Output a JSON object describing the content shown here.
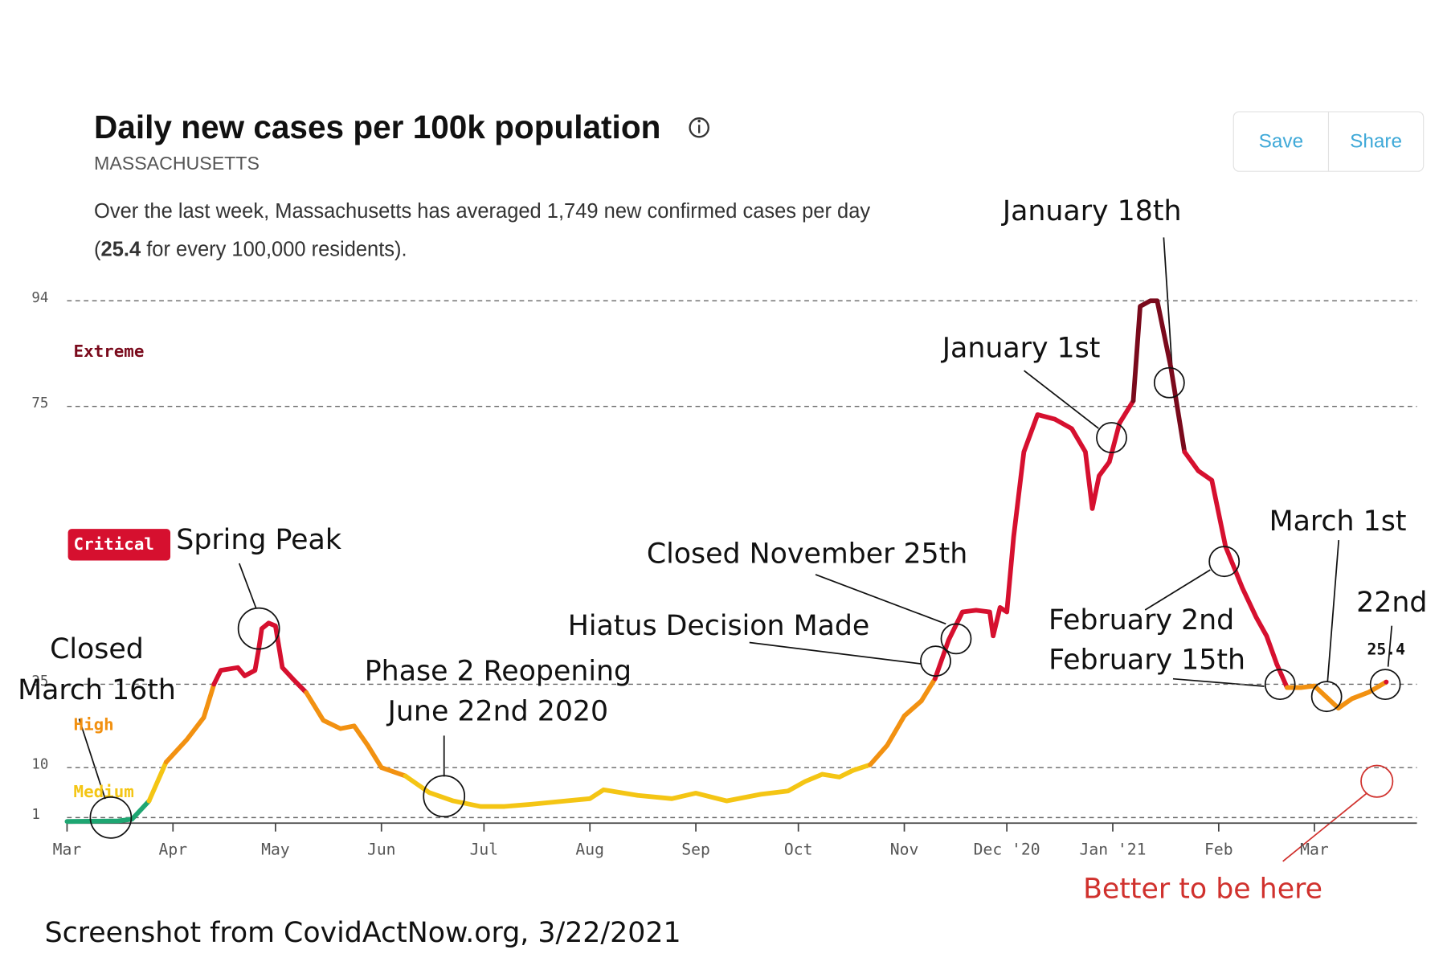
{
  "header": {
    "buttons": [
      "Save",
      "Share"
    ]
  },
  "chart_data": {
    "type": "line",
    "title": "Daily new cases per 100k population",
    "subtitle": "MASSACHUSETTS",
    "description": [
      "Over the last week, Massachusetts has averaged 1,749 new confirmed cases per day",
      "(",
      "25.4",
      " for every 100,000 residents)."
    ],
    "x": [
      "2020-03-01",
      "2020-03-16",
      "2020-03-20",
      "2020-03-25",
      "2020-03-30",
      "2020-04-05",
      "2020-04-10",
      "2020-04-13",
      "2020-04-15",
      "2020-04-20",
      "2020-04-22",
      "2020-04-25",
      "2020-04-26",
      "2020-04-27",
      "2020-04-29",
      "2020-05-01",
      "2020-05-03",
      "2020-05-06",
      "2020-05-10",
      "2020-05-15",
      "2020-05-20",
      "2020-05-24",
      "2020-05-28",
      "2020-06-01",
      "2020-06-08",
      "2020-06-15",
      "2020-06-22",
      "2020-06-30",
      "2020-07-07",
      "2020-07-15",
      "2020-07-25",
      "2020-08-01",
      "2020-08-05",
      "2020-08-15",
      "2020-08-25",
      "2020-09-01",
      "2020-09-10",
      "2020-09-20",
      "2020-09-28",
      "2020-10-03",
      "2020-10-08",
      "2020-10-13",
      "2020-10-17",
      "2020-10-22",
      "2020-10-27",
      "2020-11-01",
      "2020-11-06",
      "2020-11-10",
      "2020-11-14",
      "2020-11-18",
      "2020-11-22",
      "2020-11-26",
      "2020-11-27",
      "2020-11-29",
      "2020-12-01",
      "2020-12-03",
      "2020-12-06",
      "2020-12-10",
      "2020-12-15",
      "2020-12-20",
      "2020-12-24",
      "2020-12-26",
      "2020-12-28",
      "2020-12-31",
      "2021-01-03",
      "2021-01-07",
      "2021-01-09",
      "2021-01-12",
      "2021-01-14",
      "2021-01-18",
      "2021-01-22",
      "2021-01-26",
      "2021-01-30",
      "2021-02-03",
      "2021-02-08",
      "2021-02-12",
      "2021-02-15",
      "2021-02-18",
      "2021-02-21",
      "2021-02-25",
      "2021-03-01",
      "2021-03-05",
      "2021-03-08",
      "2021-03-12",
      "2021-03-17",
      "2021-03-22"
    ],
    "values": [
      0.3,
      0.4,
      0.7,
      4,
      11,
      15,
      19,
      25,
      27.5,
      28,
      26.5,
      27.5,
      31,
      35,
      36,
      35.5,
      28,
      26,
      23.5,
      18.5,
      17,
      17.5,
      14,
      10,
      8.5,
      5.5,
      4,
      3,
      3,
      3.4,
      4,
      4.4,
      6,
      5,
      4.4,
      5.4,
      4,
      5.2,
      5.8,
      7.5,
      8.8,
      8.3,
      9.5,
      10.5,
      14,
      19.3,
      22,
      26,
      33,
      38,
      38.3,
      38,
      33.7,
      38.8,
      38,
      51.5,
      66.8,
      73.5,
      72.7,
      71,
      66.8,
      56.6,
      62.5,
      65,
      72,
      76,
      93,
      94,
      94,
      82,
      66.8,
      63.4,
      61.7,
      49.8,
      42.2,
      37,
      33.7,
      28.6,
      24.4,
      24.4,
      24.7,
      22.4,
      20.7,
      22.4,
      23.6,
      25.4
    ],
    "xlim": [
      "2020-03-01",
      "2021-03-31"
    ],
    "xticks": [
      {
        "value": "2020-03-01",
        "label": "Mar"
      },
      {
        "value": "2020-04-01",
        "label": "Apr"
      },
      {
        "value": "2020-05-01",
        "label": "May"
      },
      {
        "value": "2020-06-01",
        "label": "Jun"
      },
      {
        "value": "2020-07-01",
        "label": "Jul"
      },
      {
        "value": "2020-08-01",
        "label": "Aug"
      },
      {
        "value": "2020-09-01",
        "label": "Sep"
      },
      {
        "value": "2020-10-01",
        "label": "Oct"
      },
      {
        "value": "2020-11-01",
        "label": "Nov"
      },
      {
        "value": "2020-12-01",
        "label": "Dec '20"
      },
      {
        "value": "2021-01-01",
        "label": "Jan '21"
      },
      {
        "value": "2021-02-01",
        "label": "Feb"
      },
      {
        "value": "2021-03-01",
        "label": "Mar"
      }
    ],
    "ylim": [
      0,
      94
    ],
    "yticks": [
      1,
      10,
      25,
      75,
      94
    ],
    "grid": true,
    "base_color": "#1ea672",
    "levels": [
      {
        "name": "Medium",
        "min": 1,
        "color": "#f4c514"
      },
      {
        "name": "High",
        "min": 10,
        "color": "#f29111"
      },
      {
        "name": "Critical",
        "min": 25,
        "color": "#d6102f"
      },
      {
        "name": "Extreme",
        "min": 75,
        "color": "#7a0a1c"
      }
    ],
    "annotations": [
      "Closed",
      "March 16th",
      "Spring Peak",
      "Phase 2 Reopening",
      "June 22nd 2020",
      "Hiatus Decision Made",
      "Closed November 25th",
      "January 1st",
      "January 18th",
      "February 2nd",
      "February 15th",
      "March 1st",
      "22nd",
      "Better to be here"
    ]
  },
  "footer": "Screenshot from CovidActNow.org, 3/22/2021"
}
